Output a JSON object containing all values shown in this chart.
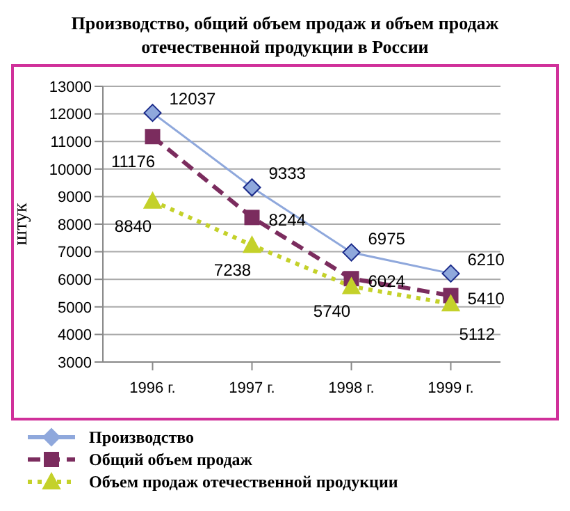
{
  "chart_data": {
    "type": "line",
    "title": "Производство, общий объем продаж и объем продаж отечественной продукции в России",
    "ylabel": "штук",
    "categories": [
      "1996 г.",
      "1997 г.",
      "1998 г.",
      "1999 г."
    ],
    "series": [
      {
        "name": "Производство",
        "color": "#8fa8dc",
        "values": [
          12037,
          9333,
          6975,
          6210
        ],
        "marker": "diamond",
        "line_style": "solid"
      },
      {
        "name": "Общий объем продаж",
        "color": "#7b2c5e",
        "values": [
          11176,
          8244,
          6024,
          5410
        ],
        "marker": "square",
        "line_style": "dashed"
      },
      {
        "name": "Объем продаж отечественной продукции",
        "color": "#c4d12a",
        "values": [
          8840,
          7238,
          5740,
          5112
        ],
        "marker": "triangle",
        "line_style": "dotted"
      }
    ],
    "ylim": [
      3000,
      13000
    ],
    "yticks": [
      3000,
      4000,
      5000,
      6000,
      7000,
      8000,
      9000,
      10000,
      11000,
      12000,
      13000
    ],
    "grid": "y",
    "legend": "bottom",
    "data_labels": true
  }
}
